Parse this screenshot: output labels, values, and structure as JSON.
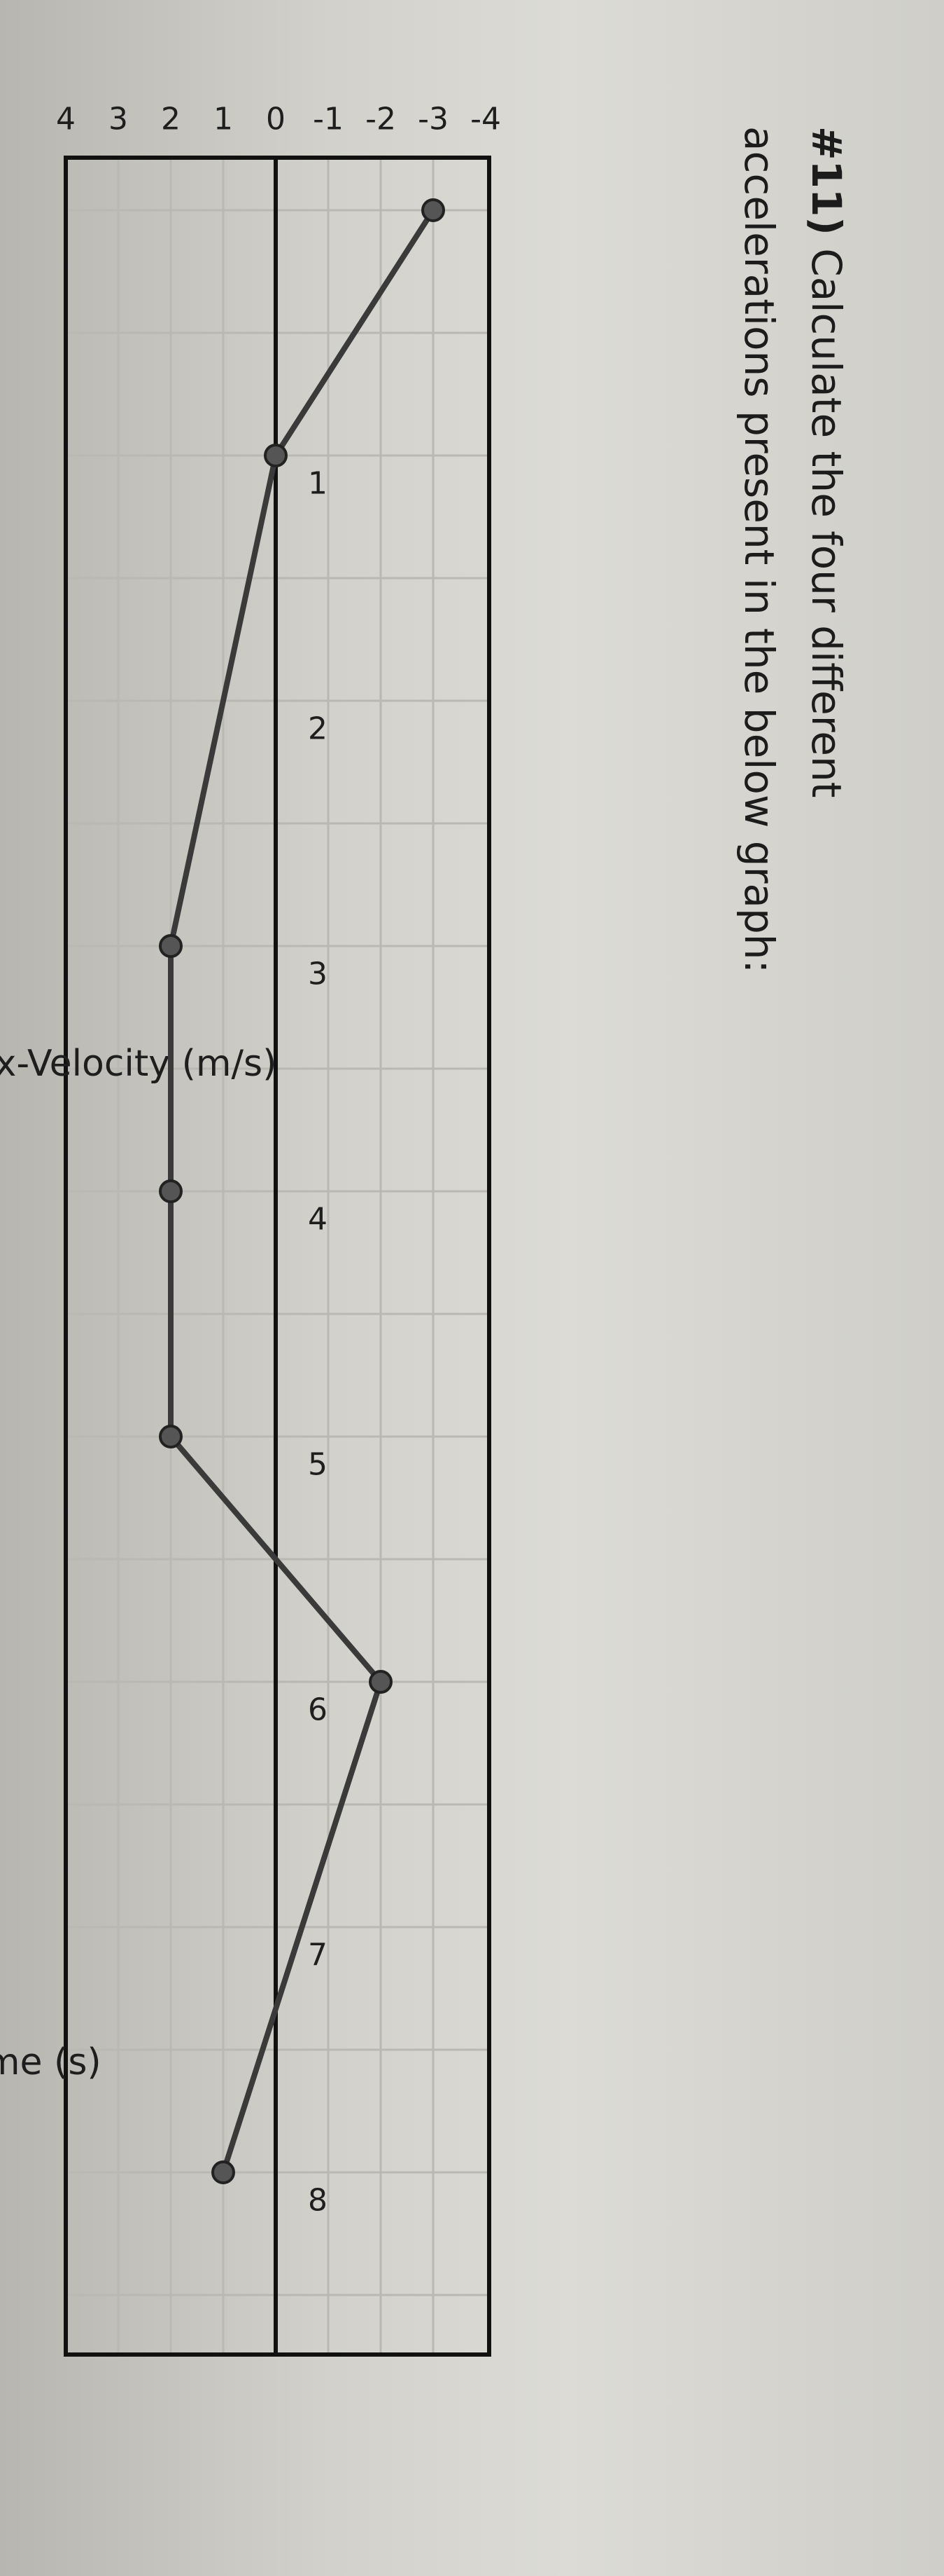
{
  "question": {
    "number": "#11)",
    "text": "Calculate the four different accelerations present in the below graph:"
  },
  "chart_data": {
    "type": "line",
    "xlabel": "Time (s)",
    "ylabel": "x-Velocity (m/s)",
    "xlim": [
      0,
      8.5
    ],
    "ylim": [
      -4,
      4
    ],
    "x_ticks": [
      "1",
      "2",
      "3",
      "4",
      "5",
      "6",
      "7",
      "8"
    ],
    "y_ticks": [
      "4",
      "3",
      "2",
      "1",
      "0",
      "-1",
      "-2",
      "-3",
      "-4"
    ],
    "grid": true,
    "series": [
      {
        "x": [
          0,
          1,
          3,
          4,
          5,
          6,
          8
        ],
        "y": [
          -3,
          0,
          2,
          2,
          2,
          -2,
          1
        ]
      }
    ]
  },
  "colors": {
    "line": "#3a3a3a",
    "grid": "#b9b8b3",
    "axis": "#111111"
  }
}
